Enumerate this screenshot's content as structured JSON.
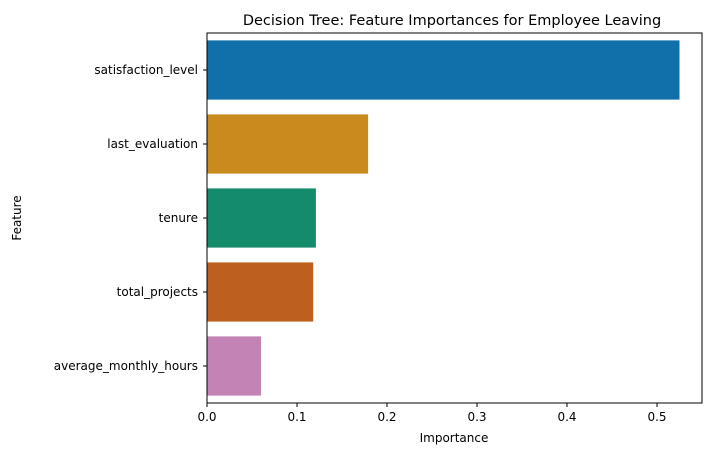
{
  "chart_data": {
    "type": "bar",
    "orientation": "horizontal",
    "title": "Decision Tree: Feature Importances for Employee Leaving",
    "xlabel": "Importance",
    "ylabel": "Feature",
    "xlim": [
      0,
      0.55
    ],
    "x_ticks": [
      "0.0",
      "0.1",
      "0.2",
      "0.3",
      "0.4",
      "0.5"
    ],
    "categories": [
      "satisfaction_level",
      "last_evaluation",
      "tenure",
      "total_projects",
      "average_monthly_hours"
    ],
    "values": [
      0.525,
      0.179,
      0.121,
      0.118,
      0.06
    ],
    "colors": [
      "#1170aa",
      "#c98b1e",
      "#148c6b",
      "#bd5f1e",
      "#c383b5"
    ],
    "grid": false,
    "legend": "none"
  }
}
